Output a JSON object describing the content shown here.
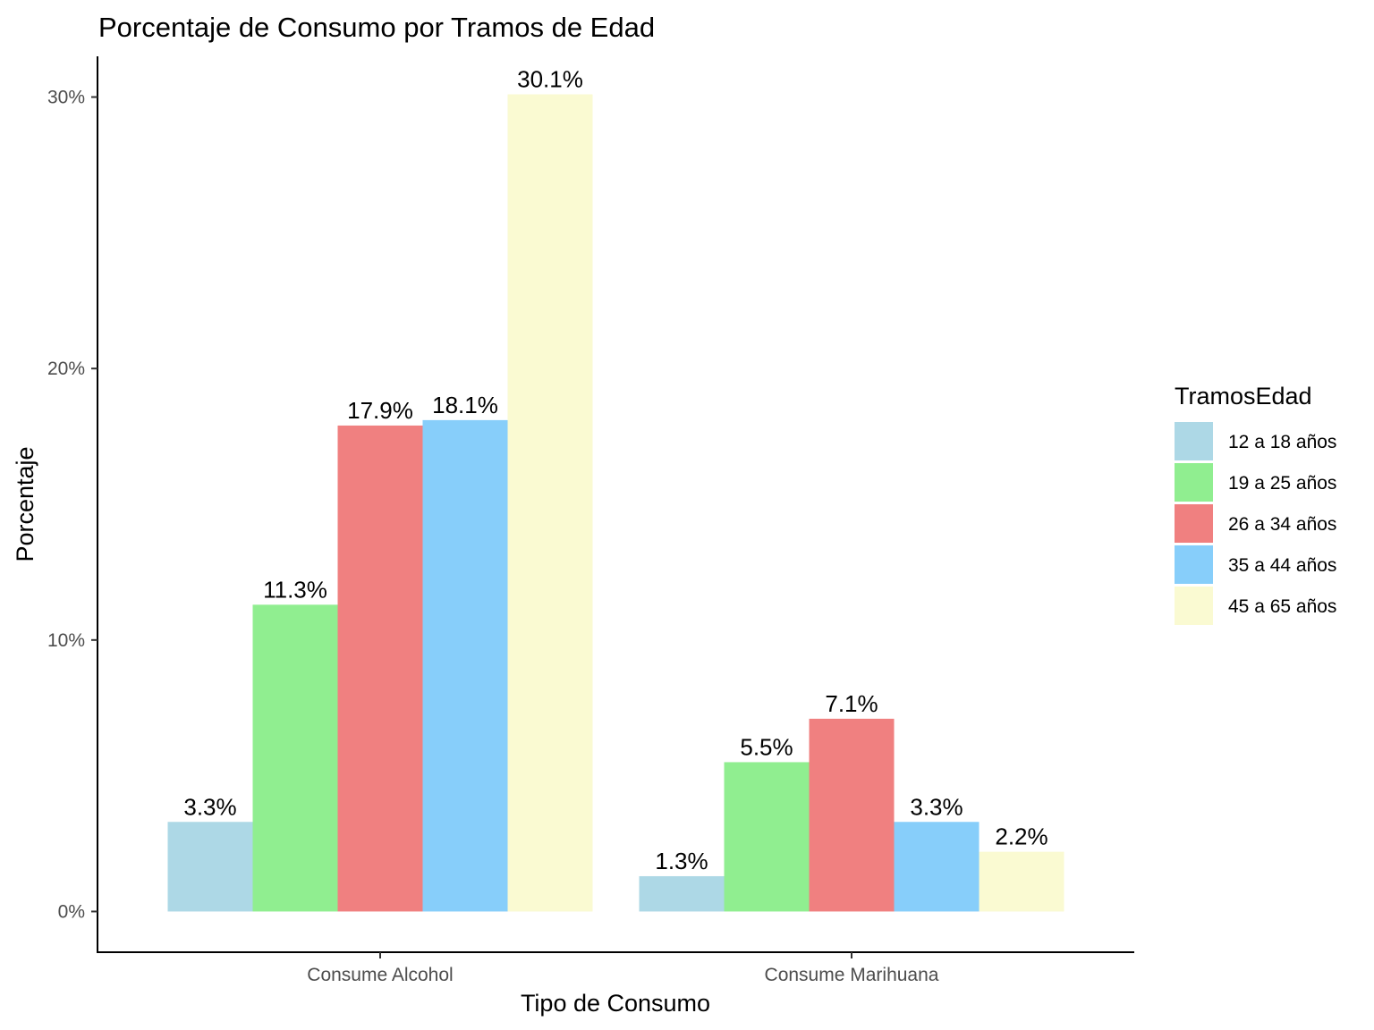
{
  "chart_data": {
    "type": "bar",
    "title": "Porcentaje de Consumo por Tramos de Edad",
    "xlabel": "Tipo de Consumo",
    "ylabel": "Porcentaje",
    "categories": [
      "Consume Alcohol",
      "Consume Marihuana"
    ],
    "series": [
      {
        "name": "12 a 18 años",
        "color": "#ADD8E6",
        "values": [
          3.3,
          1.3
        ],
        "labels": [
          "3.3%",
          "1.3%"
        ]
      },
      {
        "name": "19 a 25 años",
        "color": "#90EE90",
        "values": [
          11.3,
          5.5
        ],
        "labels": [
          "11.3%",
          "5.5%"
        ]
      },
      {
        "name": "26 a 34 años",
        "color": "#F08080",
        "values": [
          17.9,
          7.1
        ],
        "labels": [
          "17.9%",
          "7.1%"
        ]
      },
      {
        "name": "35 a 44 años",
        "color": "#87CEFA",
        "values": [
          18.1,
          3.3
        ],
        "labels": [
          "18.1%",
          "3.3%"
        ]
      },
      {
        "name": "45 a 65 años",
        "color": "#FAFAD2",
        "values": [
          30.1,
          2.2
        ],
        "labels": [
          "30.1%",
          "2.2%"
        ]
      }
    ],
    "ylim": [
      -1.5,
      31.5
    ],
    "yticks": [
      0,
      10,
      20,
      30
    ],
    "ytick_labels": [
      "0%",
      "10%",
      "20%",
      "30%"
    ],
    "grid": false,
    "legend": {
      "title": "TramosEdad",
      "placement": "right"
    }
  }
}
